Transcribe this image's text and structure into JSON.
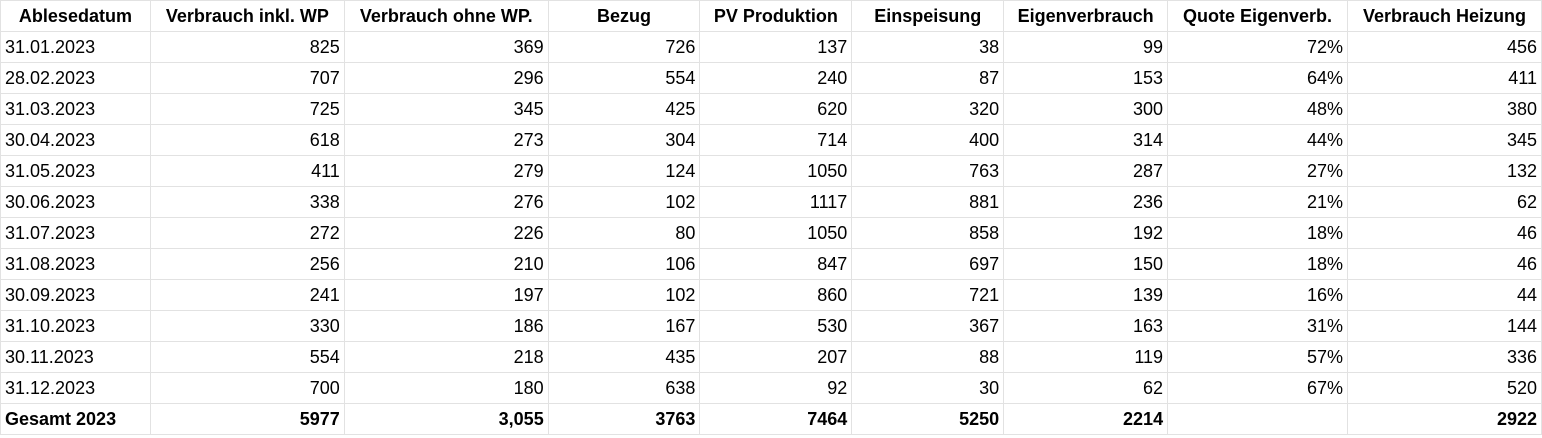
{
  "table": {
    "headers": [
      "Ablesedatum",
      "Verbrauch inkl. WP",
      "Verbrauch ohne WP.",
      "Bezug",
      "PV Produktion",
      "Einspeisung",
      "Eigenverbrauch",
      "Quote Eigenverb.",
      "Verbrauch Heizung"
    ],
    "rows": [
      [
        "31.01.2023",
        "825",
        "369",
        "726",
        "137",
        "38",
        "99",
        "72%",
        "456"
      ],
      [
        "28.02.2023",
        "707",
        "296",
        "554",
        "240",
        "87",
        "153",
        "64%",
        "411"
      ],
      [
        "31.03.2023",
        "725",
        "345",
        "425",
        "620",
        "320",
        "300",
        "48%",
        "380"
      ],
      [
        "30.04.2023",
        "618",
        "273",
        "304",
        "714",
        "400",
        "314",
        "44%",
        "345"
      ],
      [
        "31.05.2023",
        "411",
        "279",
        "124",
        "1050",
        "763",
        "287",
        "27%",
        "132"
      ],
      [
        "30.06.2023",
        "338",
        "276",
        "102",
        "1117",
        "881",
        "236",
        "21%",
        "62"
      ],
      [
        "31.07.2023",
        "272",
        "226",
        "80",
        "1050",
        "858",
        "192",
        "18%",
        "46"
      ],
      [
        "31.08.2023",
        "256",
        "210",
        "106",
        "847",
        "697",
        "150",
        "18%",
        "46"
      ],
      [
        "30.09.2023",
        "241",
        "197",
        "102",
        "860",
        "721",
        "139",
        "16%",
        "44"
      ],
      [
        "31.10.2023",
        "330",
        "186",
        "167",
        "530",
        "367",
        "163",
        "31%",
        "144"
      ],
      [
        "30.11.2023",
        "554",
        "218",
        "435",
        "207",
        "88",
        "119",
        "57%",
        "336"
      ],
      [
        "31.12.2023",
        "700",
        "180",
        "638",
        "92",
        "30",
        "62",
        "67%",
        "520"
      ]
    ],
    "total": [
      "Gesamt 2023",
      "5977",
      "3,055",
      "3763",
      "7464",
      "5250",
      "2214",
      "",
      "2922"
    ]
  }
}
